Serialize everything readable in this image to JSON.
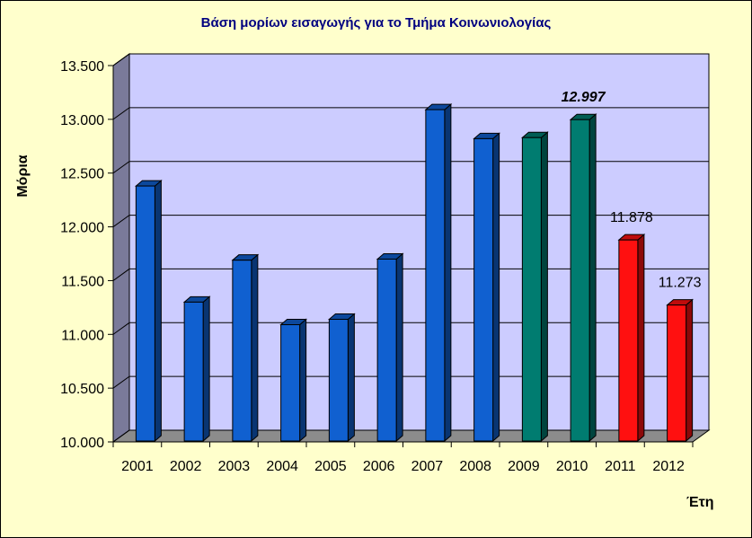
{
  "chart_data": {
    "type": "bar",
    "title": "Βάση μορίων εισαγωγής για το Τμήμα Κοινωνιολογίας",
    "ylabel": "Μόρια",
    "xlabel": "Έτη",
    "ylim": [
      10000,
      13500
    ],
    "yticks": [
      10000,
      10500,
      11000,
      11500,
      12000,
      12500,
      13000,
      13500
    ],
    "ytick_labels": [
      "10.000",
      "10.500",
      "11.000",
      "11.500",
      "12.000",
      "12.500",
      "13.000",
      "13.500"
    ],
    "categories": [
      "2001",
      "2002",
      "2003",
      "2004",
      "2005",
      "2006",
      "2007",
      "2008",
      "2009",
      "2010",
      "2011",
      "2012"
    ],
    "values": [
      12380,
      11300,
      11690,
      11090,
      11140,
      11700,
      13090,
      12820,
      12830,
      12997,
      11878,
      11273
    ],
    "bar_colors": [
      "#1060d0",
      "#1060d0",
      "#1060d0",
      "#1060d0",
      "#1060d0",
      "#1060d0",
      "#1060d0",
      "#1060d0",
      "#007c70",
      "#007c70",
      "#ff1010",
      "#ff1010"
    ],
    "data_labels": [
      {
        "index": 9,
        "text": "12.997",
        "color": "#1e8a9c",
        "bold": true,
        "italic": true
      },
      {
        "index": 10,
        "text": "11.878",
        "color": "#000000",
        "bold": false,
        "italic": false
      },
      {
        "index": 11,
        "text": "11.273",
        "color": "#000000",
        "bold": false,
        "italic": false
      }
    ],
    "grid": true,
    "colors": {
      "plot_background": "#ccccff",
      "page_background": "#ffffcc",
      "title": "#000080"
    }
  }
}
